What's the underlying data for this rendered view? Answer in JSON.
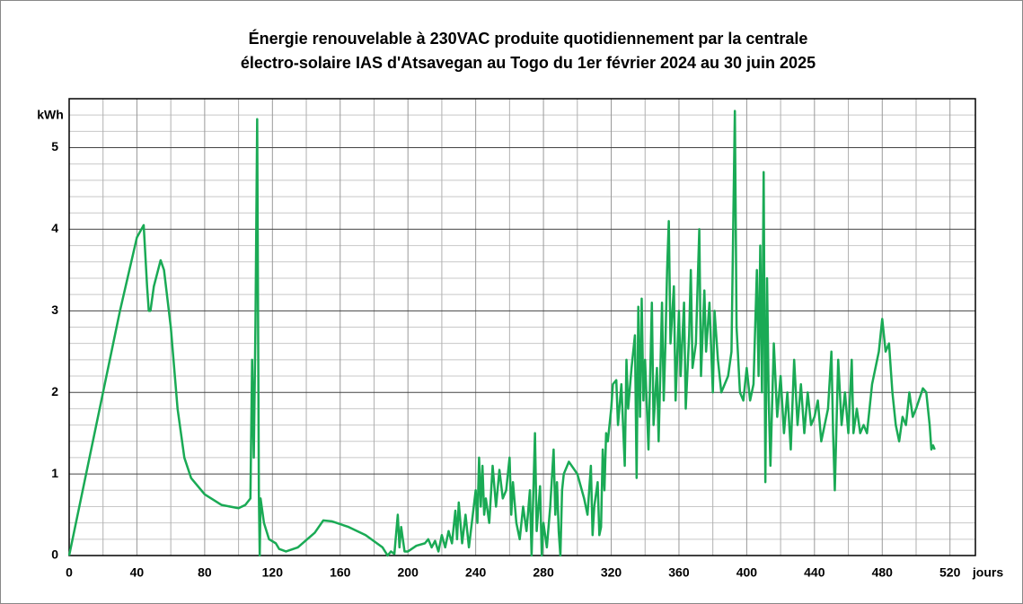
{
  "chart_data": {
    "type": "line",
    "title": [
      "Énergie renouvelable à 230VAC produite quotidiennement par la centrale",
      "électro-solaire IAS d'Atsavegan au Togo du 1er février 2024 au 30 juin 2025"
    ],
    "y_label": "kWh",
    "x_label": "jours",
    "xlim": [
      0,
      535
    ],
    "ylim": [
      0,
      5.6
    ],
    "xticks": [
      0,
      40,
      80,
      120,
      160,
      200,
      240,
      280,
      320,
      360,
      400,
      440,
      480,
      520
    ],
    "yticks": [
      0,
      1,
      2,
      3,
      4,
      5
    ],
    "minor_xticks": [
      20,
      60,
      100,
      140,
      180,
      220,
      260,
      300,
      340,
      380,
      420,
      460,
      500
    ],
    "minor_yticks": [
      0.2,
      0.4,
      0.6,
      0.8,
      1.2,
      1.4,
      1.6,
      1.8,
      2.2,
      2.4,
      2.6,
      2.8,
      3.2,
      3.4,
      3.6,
      3.8,
      4.2,
      4.4,
      4.6,
      4.8,
      5.2,
      5.4
    ],
    "grid": true,
    "series": [
      {
        "color": "#1aaa55",
        "x": [
          0,
          10,
          20,
          30,
          40,
          44,
          46,
          47,
          48,
          50,
          54,
          56,
          60,
          64,
          68,
          72,
          80,
          90,
          100,
          104,
          107,
          108,
          109,
          110,
          111,
          112,
          112.5,
          113,
          115,
          118,
          122,
          124,
          128,
          135,
          145,
          150,
          155,
          165,
          175,
          185,
          188,
          190,
          192,
          194,
          195,
          196,
          198,
          200,
          205,
          210,
          212,
          214,
          216,
          218,
          220,
          222,
          224,
          226,
          228,
          229,
          230,
          232,
          234,
          236,
          238,
          240,
          241,
          242,
          243,
          244,
          245,
          246,
          248,
          250,
          252,
          254,
          256,
          258,
          260,
          261,
          262,
          264,
          266,
          268,
          270,
          272,
          273,
          275,
          276,
          278,
          279,
          280,
          282,
          284,
          286,
          287,
          288,
          289,
          290,
          291,
          292,
          295,
          300,
          304,
          306,
          308,
          309,
          310,
          312,
          313,
          314,
          315,
          316,
          317,
          318,
          320,
          321,
          323,
          324,
          326,
          328,
          329,
          330,
          332,
          334,
          335,
          336,
          337,
          338,
          339,
          340,
          342,
          344,
          345,
          347,
          348,
          350,
          351,
          352,
          353,
          354,
          355,
          357,
          358,
          360,
          361,
          363,
          364,
          366,
          367,
          368,
          370,
          372,
          373,
          375,
          376,
          378,
          380,
          381,
          383,
          385,
          387,
          389,
          391,
          393,
          394,
          396,
          398,
          400,
          402,
          404,
          406,
          407,
          408,
          409,
          410,
          411,
          412,
          413,
          414,
          416,
          418,
          420,
          422,
          424,
          426,
          428,
          430,
          432,
          434,
          436,
          438,
          440,
          442,
          444,
          446,
          448,
          450,
          451,
          452,
          454,
          456,
          458,
          460,
          462,
          463,
          465,
          467,
          469,
          471,
          474,
          478,
          480,
          482,
          484,
          486,
          488,
          490,
          492,
          494,
          496,
          498,
          500,
          504,
          506,
          508,
          509,
          510,
          511
        ],
        "values": [
          0,
          1.0,
          2.0,
          3.0,
          3.9,
          4.05,
          3.3,
          3.0,
          3.0,
          3.3,
          3.62,
          3.5,
          2.8,
          1.8,
          1.2,
          0.95,
          0.75,
          0.62,
          0.58,
          0.62,
          0.7,
          2.4,
          1.2,
          2.85,
          5.35,
          0.75,
          0,
          0.7,
          0.4,
          0.2,
          0.15,
          0.08,
          0.05,
          0.1,
          0.28,
          0.43,
          0.42,
          0.35,
          0.25,
          0.1,
          0,
          0.05,
          0.02,
          0.5,
          0.1,
          0.35,
          0.05,
          0.05,
          0.12,
          0.15,
          0.2,
          0.1,
          0.18,
          0.05,
          0.25,
          0.1,
          0.3,
          0.15,
          0.55,
          0.2,
          0.65,
          0.15,
          0.5,
          0.1,
          0.45,
          0.8,
          0.4,
          1.2,
          0.6,
          1.1,
          0.5,
          0.7,
          0.4,
          1.1,
          0.6,
          1.05,
          0.7,
          0.8,
          1.2,
          0.5,
          0.9,
          0.4,
          0.2,
          0.6,
          0.3,
          0.8,
          0,
          1.5,
          0.3,
          0.85,
          0,
          0.4,
          0.1,
          0.6,
          1.3,
          0.5,
          0.9,
          0.3,
          0,
          0.8,
          1.0,
          1.15,
          1.0,
          0.7,
          0.5,
          1.1,
          0.25,
          0.6,
          0.9,
          0.25,
          0.35,
          1.3,
          0.8,
          1.5,
          1.4,
          1.8,
          2.1,
          2.15,
          1.6,
          2.1,
          1.1,
          2.4,
          1.8,
          2.3,
          2.7,
          0.95,
          3.05,
          1.7,
          3.15,
          1.9,
          2.4,
          1.3,
          3.1,
          1.6,
          2.3,
          1.4,
          3.1,
          1.9,
          2.6,
          3.5,
          4.1,
          2.6,
          3.3,
          1.9,
          3.0,
          2.2,
          3.1,
          1.8,
          2.7,
          3.5,
          2.3,
          2.6,
          4.0,
          2.2,
          3.25,
          2.5,
          3.1,
          2.0,
          3.0,
          2.4,
          2.0,
          2.1,
          2.2,
          2.5,
          5.45,
          2.8,
          2.0,
          1.9,
          2.3,
          1.9,
          2.1,
          3.5,
          2.2,
          3.8,
          2.0,
          4.7,
          0.9,
          3.4,
          1.9,
          1.1,
          2.6,
          1.7,
          2.2,
          1.5,
          2.0,
          1.3,
          2.4,
          1.6,
          2.1,
          1.5,
          2.0,
          1.6,
          1.7,
          1.9,
          1.4,
          1.6,
          1.8,
          2.5,
          1.5,
          0.8,
          2.4,
          1.6,
          2.0,
          1.5,
          2.4,
          1.5,
          1.8,
          1.5,
          1.6,
          1.5,
          2.1,
          2.5,
          2.9,
          2.5,
          2.6,
          2.0,
          1.6,
          1.4,
          1.7,
          1.6,
          2.0,
          1.7,
          1.8,
          2.05,
          2.0,
          1.6,
          1.3,
          1.35,
          1.3
        ]
      }
    ]
  }
}
